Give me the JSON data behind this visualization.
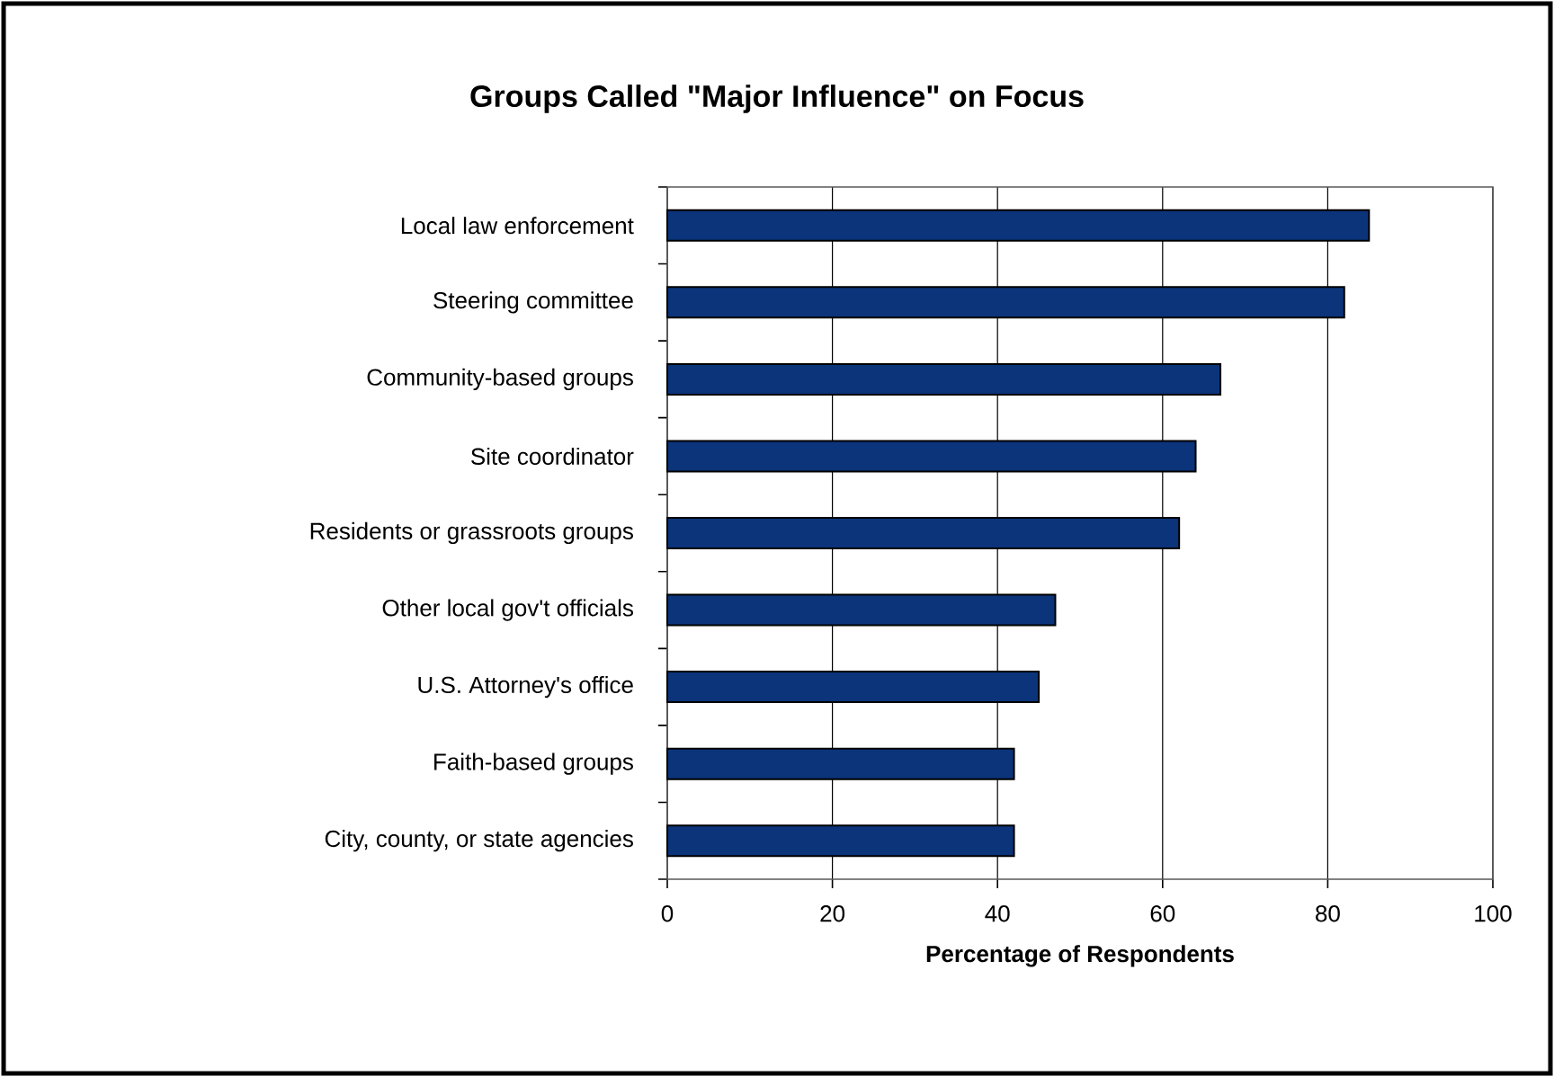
{
  "chart_data": {
    "type": "bar",
    "orientation": "horizontal",
    "title": "Groups Called \"Major Influence\" on Focus",
    "xlabel": "Percentage of Respondents",
    "categories": [
      "Local law enforcement",
      "Steering committee",
      "Community-based groups",
      "Site coordinator",
      "Residents or grassroots groups",
      "Other local gov't officials",
      "U.S. Attorney's office",
      "Faith-based groups",
      "City, county, or state agencies"
    ],
    "values": [
      85,
      82,
      67,
      64,
      62,
      47,
      45,
      42,
      42
    ],
    "color": "#0b347a",
    "xlim": [
      0,
      100
    ],
    "xticks": [
      0,
      20,
      40,
      60,
      80,
      100
    ],
    "grid": "x"
  }
}
